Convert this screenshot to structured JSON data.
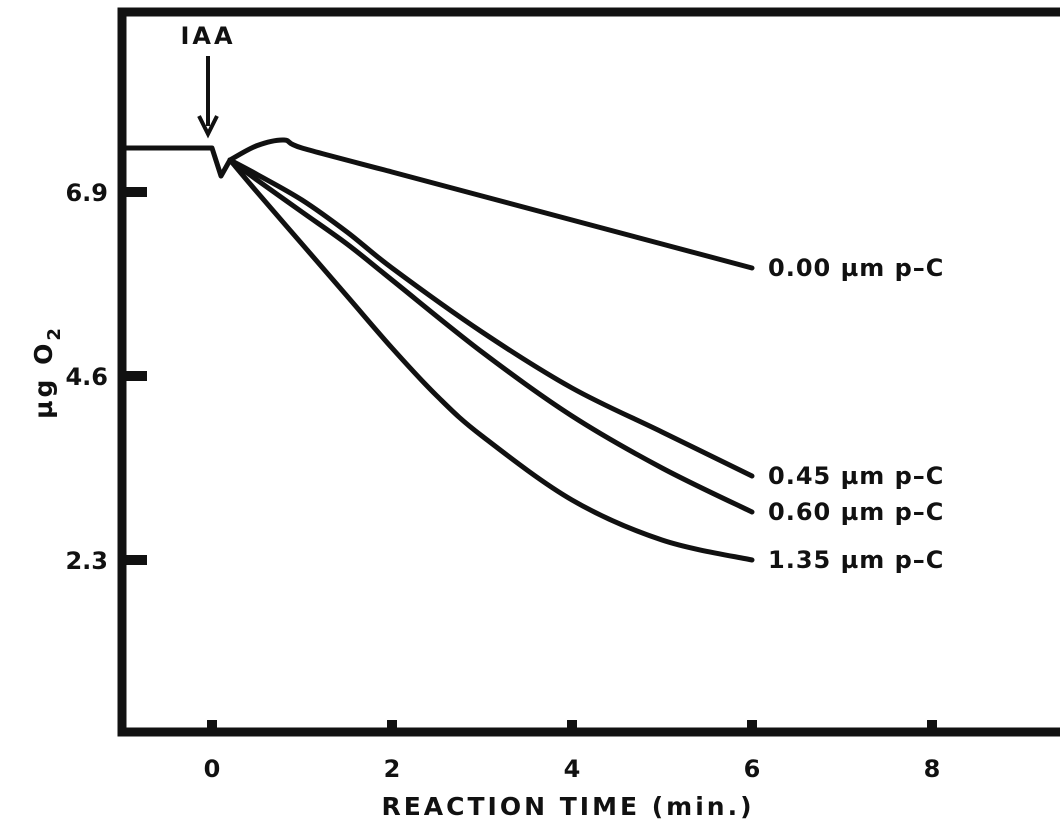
{
  "chart_data": {
    "type": "line",
    "title": "",
    "xlabel": "REACTION TIME (min.)",
    "ylabel_main": "µg O",
    "ylabel_sub": "2",
    "xlim": [
      -1,
      9.5
    ],
    "ylim": [
      -0.3,
      9.6
    ],
    "x_ticks": [
      0,
      2,
      4,
      6,
      8
    ],
    "x_tick_labels": [
      "0",
      "2",
      "4",
      "6",
      "8"
    ],
    "y_ticks": [
      2.3,
      4.6,
      6.9
    ],
    "y_tick_labels": [
      "2.3",
      "4.6",
      "6.9"
    ],
    "grid": false,
    "annotation": {
      "text": "IAA",
      "x": 0
    },
    "baseline": {
      "x": [
        -1,
        0,
        0.1,
        0.2
      ],
      "y": [
        7.45,
        7.45,
        7.1,
        7.3
      ]
    },
    "series": [
      {
        "name": "0.00  µm p–C",
        "x": [
          0.2,
          0.5,
          0.8,
          1,
          2,
          3,
          4,
          5,
          6
        ],
        "y": [
          7.3,
          7.48,
          7.55,
          7.45,
          7.15,
          6.85,
          6.55,
          6.25,
          5.95
        ]
      },
      {
        "name": "0.45  µm p–C",
        "x": [
          0.2,
          0.5,
          1,
          1.5,
          2,
          3,
          4,
          5,
          6
        ],
        "y": [
          7.3,
          7.12,
          6.8,
          6.4,
          5.95,
          5.15,
          4.45,
          3.9,
          3.35
        ]
      },
      {
        "name": "0.60  µm p–C",
        "x": [
          0.2,
          0.5,
          1,
          1.5,
          2,
          3,
          4,
          5,
          6
        ],
        "y": [
          7.3,
          7.05,
          6.65,
          6.25,
          5.8,
          4.9,
          4.1,
          3.45,
          2.9
        ]
      },
      {
        "name": "1.35  µm p–C",
        "x": [
          0.2,
          0.5,
          1,
          1.5,
          2,
          2.5,
          3,
          4,
          5,
          6
        ],
        "y": [
          7.3,
          6.9,
          6.25,
          5.6,
          4.95,
          4.35,
          3.85,
          3.05,
          2.55,
          2.3
        ]
      }
    ]
  }
}
